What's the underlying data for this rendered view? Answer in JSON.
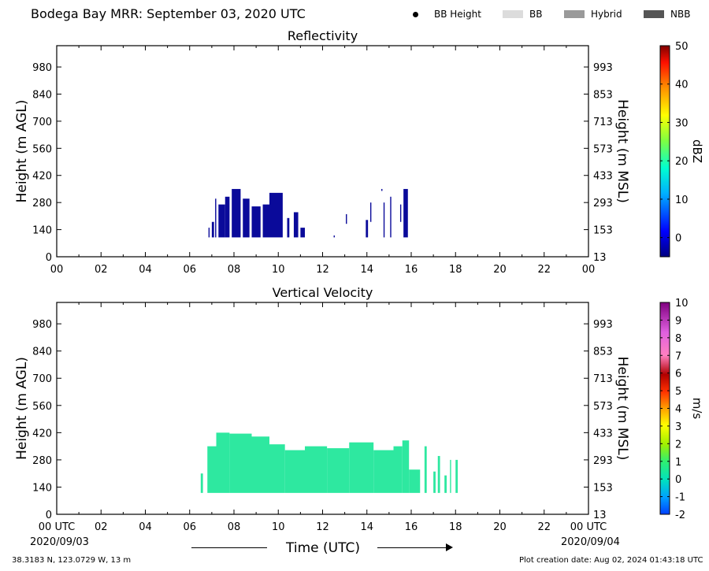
{
  "header": {
    "title": "Bodega Bay MRR:  September 03, 2020 UTC",
    "legend": [
      {
        "label": "BB Height",
        "marker": "dot",
        "color": "#000000"
      },
      {
        "label": "BB",
        "marker": "swatch",
        "color": "#dcdcdc"
      },
      {
        "label": "Hybrid",
        "marker": "swatch",
        "color": "#9a9a9a"
      },
      {
        "label": "NBB",
        "marker": "swatch",
        "color": "#555555"
      }
    ]
  },
  "footer": {
    "location": "38.3183 N, 123.0729 W, 13 m",
    "created": "Plot creation date: Aug 02, 2024 01:43:18 UTC",
    "start_date": "2020/09/03",
    "end_date": "2020/09/04",
    "xlabel": "Time (UTC)"
  },
  "chart_data": [
    {
      "type": "heatmap",
      "title": "Reflectivity",
      "ylabel": "Height (m AGL)",
      "ylabel_right": "Height (m MSL)",
      "ylim": [
        0,
        1090
      ],
      "y_ticks": [
        0,
        140,
        280,
        420,
        560,
        700,
        840,
        980
      ],
      "y_ticks_right": [
        "13",
        "153",
        "293",
        "433",
        "573",
        "713",
        "853",
        "993"
      ],
      "xlim": [
        0,
        24
      ],
      "x_ticks": [
        "00",
        "02",
        "04",
        "06",
        "08",
        "10",
        "12",
        "14",
        "16",
        "18",
        "20",
        "22",
        "00"
      ],
      "colorbar": {
        "label": "dBZ",
        "min": -5,
        "max": 50,
        "ticks": [
          0,
          10,
          20,
          30,
          40,
          50
        ]
      },
      "echo_color": "#0a0a9a",
      "echoes": [
        {
          "start": 6.85,
          "end": 6.9,
          "base": 100,
          "top": 150
        },
        {
          "start": 7.0,
          "end": 7.1,
          "base": 100,
          "top": 180
        },
        {
          "start": 7.15,
          "end": 7.2,
          "base": 100,
          "top": 300
        },
        {
          "start": 7.3,
          "end": 7.6,
          "base": 100,
          "top": 270
        },
        {
          "start": 7.6,
          "end": 7.8,
          "base": 100,
          "top": 310
        },
        {
          "start": 7.9,
          "end": 8.3,
          "base": 100,
          "top": 350
        },
        {
          "start": 8.4,
          "end": 8.7,
          "base": 100,
          "top": 300
        },
        {
          "start": 8.8,
          "end": 9.2,
          "base": 100,
          "top": 260
        },
        {
          "start": 9.3,
          "end": 9.6,
          "base": 100,
          "top": 270
        },
        {
          "start": 9.6,
          "end": 10.2,
          "base": 100,
          "top": 330
        },
        {
          "start": 10.4,
          "end": 10.5,
          "base": 100,
          "top": 200
        },
        {
          "start": 10.7,
          "end": 10.9,
          "base": 100,
          "top": 230
        },
        {
          "start": 11.0,
          "end": 11.2,
          "base": 100,
          "top": 150
        },
        {
          "start": 12.5,
          "end": 12.55,
          "base": 100,
          "top": 110
        },
        {
          "start": 13.05,
          "end": 13.1,
          "base": 170,
          "top": 220
        },
        {
          "start": 13.95,
          "end": 14.05,
          "base": 100,
          "top": 190
        },
        {
          "start": 14.15,
          "end": 14.2,
          "base": 180,
          "top": 280
        },
        {
          "start": 14.65,
          "end": 14.7,
          "base": 340,
          "top": 350
        },
        {
          "start": 14.75,
          "end": 14.8,
          "base": 100,
          "top": 280
        },
        {
          "start": 15.05,
          "end": 15.1,
          "base": 100,
          "top": 310
        },
        {
          "start": 15.5,
          "end": 15.55,
          "base": 180,
          "top": 270
        },
        {
          "start": 15.65,
          "end": 15.85,
          "base": 100,
          "top": 350
        }
      ]
    },
    {
      "type": "heatmap",
      "title": "Vertical Velocity",
      "ylabel": "Height (m AGL)",
      "ylabel_right": "Height (m MSL)",
      "ylim": [
        0,
        1090
      ],
      "y_ticks": [
        0,
        140,
        280,
        420,
        560,
        700,
        840,
        980
      ],
      "y_ticks_right": [
        "13",
        "153",
        "293",
        "433",
        "573",
        "713",
        "853",
        "993"
      ],
      "xlim": [
        0,
        24
      ],
      "x_ticks": [
        "00 UTC",
        "02",
        "04",
        "06",
        "08",
        "10",
        "12",
        "14",
        "16",
        "18",
        "20",
        "22",
        "00 UTC"
      ],
      "colorbar": {
        "label": "m/s",
        "min": -2,
        "max": 10,
        "ticks": [
          -2,
          -1,
          0,
          1,
          2,
          3,
          4,
          5,
          6,
          7,
          8,
          9,
          10
        ]
      },
      "echo_color": "#2ee8a0",
      "echoes": [
        {
          "start": 6.5,
          "end": 6.6,
          "base": 110,
          "top": 210
        },
        {
          "start": 6.8,
          "end": 7.2,
          "base": 110,
          "top": 350
        },
        {
          "start": 7.2,
          "end": 7.8,
          "base": 110,
          "top": 420
        },
        {
          "start": 7.8,
          "end": 8.8,
          "base": 110,
          "top": 415
        },
        {
          "start": 8.8,
          "end": 9.6,
          "base": 110,
          "top": 400
        },
        {
          "start": 9.6,
          "end": 10.3,
          "base": 110,
          "top": 360
        },
        {
          "start": 10.3,
          "end": 11.2,
          "base": 110,
          "top": 330
        },
        {
          "start": 11.2,
          "end": 12.2,
          "base": 110,
          "top": 350
        },
        {
          "start": 12.2,
          "end": 13.2,
          "base": 110,
          "top": 340
        },
        {
          "start": 13.2,
          "end": 14.3,
          "base": 110,
          "top": 370
        },
        {
          "start": 14.3,
          "end": 15.2,
          "base": 110,
          "top": 330
        },
        {
          "start": 15.2,
          "end": 15.6,
          "base": 110,
          "top": 350
        },
        {
          "start": 15.6,
          "end": 15.9,
          "base": 110,
          "top": 380
        },
        {
          "start": 15.9,
          "end": 16.4,
          "base": 110,
          "top": 230
        },
        {
          "start": 16.6,
          "end": 16.7,
          "base": 110,
          "top": 350
        },
        {
          "start": 17.0,
          "end": 17.1,
          "base": 110,
          "top": 220
        },
        {
          "start": 17.2,
          "end": 17.3,
          "base": 110,
          "top": 300
        },
        {
          "start": 17.5,
          "end": 17.6,
          "base": 110,
          "top": 200
        },
        {
          "start": 17.75,
          "end": 17.8,
          "base": 110,
          "top": 280
        },
        {
          "start": 18.0,
          "end": 18.1,
          "base": 110,
          "top": 280
        }
      ]
    }
  ]
}
